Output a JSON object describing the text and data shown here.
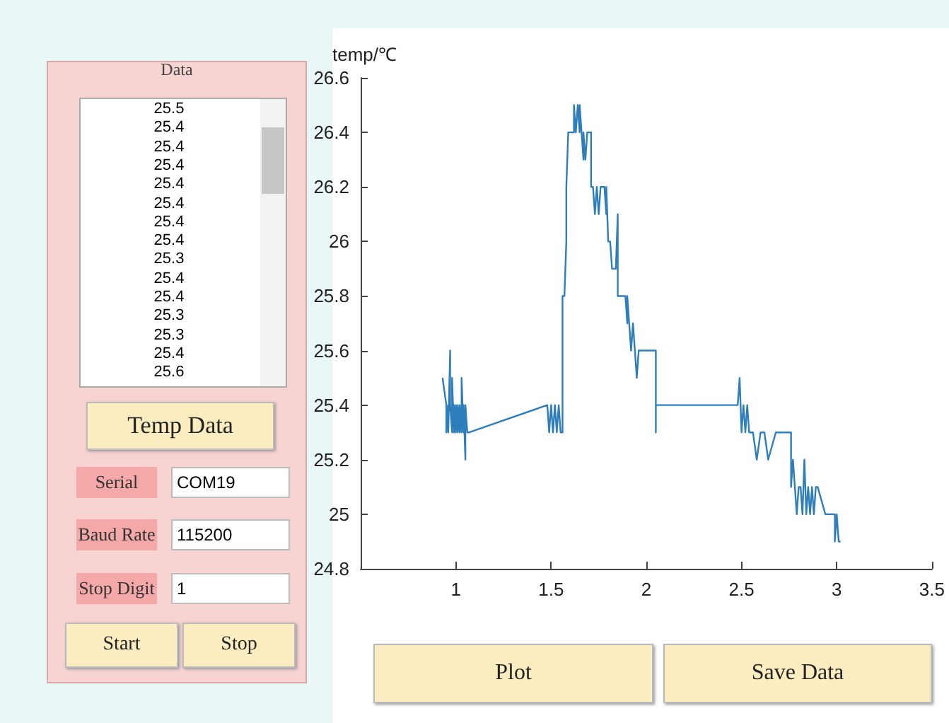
{
  "chart_data": [
    {
      "type": "other",
      "title": "Data",
      "annotations": [
        "25.5",
        "25.4",
        "25.4",
        "25.4",
        "25.4",
        "25.4",
        "25.4",
        "25.4",
        "25.3",
        "25.4",
        "25.4",
        "25.3",
        "25.3",
        "25.4",
        "25.6",
        "Temp Data",
        "Serial",
        "COM19",
        "Baud Rate",
        "115200",
        "Stop Digit",
        "1",
        "Start",
        "Stop",
        "Plot",
        "Save Data"
      ]
    },
    {
      "type": "line",
      "ylabel": "temp/℃",
      "xlim": [
        0.5,
        3.5
      ],
      "ylim": [
        24.8,
        26.6
      ],
      "xticks": [
        1,
        1.5,
        2,
        2.5,
        3,
        3.5
      ],
      "yticks": [
        24.8,
        25,
        25.2,
        25.4,
        25.6,
        25.8,
        26,
        26.2,
        26.4,
        26.6
      ],
      "grid": false,
      "marker": "none",
      "line_style": "solid",
      "series": [
        {
          "color": "#2f7ebc",
          "x": [
            0.93,
            0.95,
            0.95,
            0.96,
            0.96,
            0.97,
            0.97,
            0.98,
            0.98,
            0.99,
            0.99,
            1.0,
            1.0,
            1.01,
            1.01,
            1.02,
            1.02,
            1.03,
            1.03,
            1.04,
            1.04,
            1.05,
            1.05,
            1.06,
            1.07,
            1.48,
            1.49,
            1.5,
            1.51,
            1.52,
            1.53,
            1.54,
            1.55,
            1.56,
            1.56,
            1.57,
            1.58,
            1.58,
            1.59,
            1.62,
            1.62,
            1.63,
            1.64,
            1.65,
            1.65,
            1.66,
            1.67,
            1.67,
            1.68,
            1.69,
            1.71,
            1.71,
            1.72,
            1.73,
            1.74,
            1.75,
            1.76,
            1.78,
            1.79,
            1.79,
            1.8,
            1.81,
            1.82,
            1.84,
            1.85,
            1.85,
            1.89,
            1.9,
            1.9,
            1.91,
            1.92,
            1.93,
            1.94,
            1.95,
            1.96,
            2.05,
            2.05,
            2.05,
            2.48,
            2.49,
            2.5,
            2.51,
            2.52,
            2.53,
            2.54,
            2.56,
            2.58,
            2.6,
            2.62,
            2.64,
            2.68,
            2.76,
            2.76,
            2.77,
            2.78,
            2.79,
            2.8,
            2.81,
            2.82,
            2.83,
            2.84,
            2.85,
            2.86,
            2.87,
            2.88,
            2.89,
            2.9,
            2.94,
            2.99,
            2.99,
            3.0,
            3.01,
            3.02
          ],
          "values": [
            25.5,
            25.4,
            25.3,
            25.4,
            25.3,
            25.6,
            25.4,
            25.3,
            25.5,
            25.3,
            25.4,
            25.3,
            25.4,
            25.3,
            25.4,
            25.3,
            25.4,
            25.3,
            25.5,
            25.3,
            25.4,
            25.2,
            25.4,
            25.3,
            25.3,
            25.4,
            25.3,
            25.4,
            25.3,
            25.4,
            25.3,
            25.4,
            25.3,
            25.3,
            25.8,
            25.8,
            26.0,
            26.2,
            26.4,
            26.4,
            26.5,
            26.4,
            26.5,
            26.4,
            26.5,
            26.4,
            26.3,
            26.4,
            26.3,
            26.4,
            26.4,
            26.2,
            26.2,
            26.1,
            26.2,
            26.1,
            26.2,
            26.2,
            26.1,
            26.2,
            26.0,
            26.0,
            25.9,
            25.9,
            26.1,
            25.8,
            25.8,
            25.7,
            25.8,
            25.7,
            25.6,
            25.7,
            25.6,
            25.5,
            25.6,
            25.6,
            25.3,
            25.4,
            25.4,
            25.5,
            25.3,
            25.4,
            25.3,
            25.4,
            25.3,
            25.3,
            25.2,
            25.3,
            25.3,
            25.2,
            25.3,
            25.3,
            25.1,
            25.2,
            25.1,
            25.0,
            25.1,
            25.1,
            25.0,
            25.2,
            25.0,
            25.1,
            25.0,
            25.1,
            25.0,
            25.1,
            25.1,
            25.0,
            25.0,
            24.9,
            25.0,
            24.9,
            24.9
          ]
        }
      ]
    }
  ]
}
